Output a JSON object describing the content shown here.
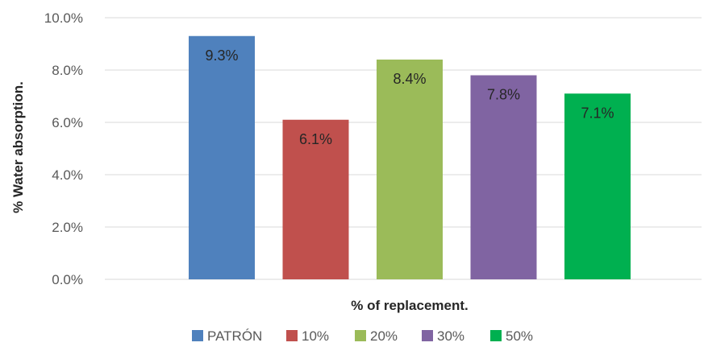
{
  "chart_data": {
    "type": "bar",
    "title": "",
    "xlabel": "% of replacement.",
    "ylabel": "% Water absorption.",
    "ylim": [
      0,
      10
    ],
    "yticks": [
      "0.0%",
      "2.0%",
      "4.0%",
      "6.0%",
      "8.0%",
      "10.0%"
    ],
    "ytick_values": [
      0,
      2,
      4,
      6,
      8,
      10
    ],
    "grid": true,
    "legend_position": "bottom",
    "series": [
      {
        "name": "PATRÓN",
        "value": 9.3,
        "label": "9.3%",
        "color": "#4F81BD"
      },
      {
        "name": "10%",
        "value": 6.1,
        "label": "6.1%",
        "color": "#C0504D"
      },
      {
        "name": "20%",
        "value": 8.4,
        "label": "8.4%",
        "color": "#9BBB59"
      },
      {
        "name": "30%",
        "value": 7.8,
        "label": "7.8%",
        "color": "#8064A2"
      },
      {
        "name": "50%",
        "value": 7.1,
        "label": "7.1%",
        "color": "#00B050"
      }
    ]
  }
}
